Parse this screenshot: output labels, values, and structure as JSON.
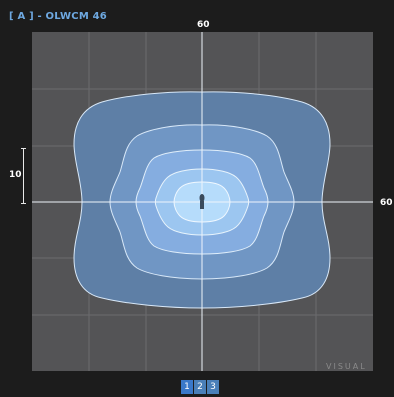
{
  "header": {
    "title": "[ A ] - OLWCM 46"
  },
  "axes": {
    "top_label": "60",
    "right_label": "60",
    "left_label": "10"
  },
  "watermark": {
    "text": "VISUAL"
  },
  "pager": {
    "pages": [
      "1",
      "2",
      "3"
    ],
    "active": 0
  },
  "colors": {
    "background": "#1c1c1c",
    "plot_background": "#545456",
    "title": "#6ea8e0",
    "contour_outer": "#5e7fa6",
    "contour_2": "#7096c4",
    "contour_3": "#85ade0",
    "contour_4": "#9cc6f0",
    "contour_core": "#b6dcfb"
  },
  "contours": [
    {
      "level": 1,
      "color": "#5e7fa6"
    },
    {
      "level": 2,
      "color": "#7096c4"
    },
    {
      "level": 3,
      "color": "#85ade0"
    },
    {
      "level": 4,
      "color": "#9cc6f0"
    },
    {
      "level": 5,
      "color": "#b6dcfb"
    }
  ]
}
